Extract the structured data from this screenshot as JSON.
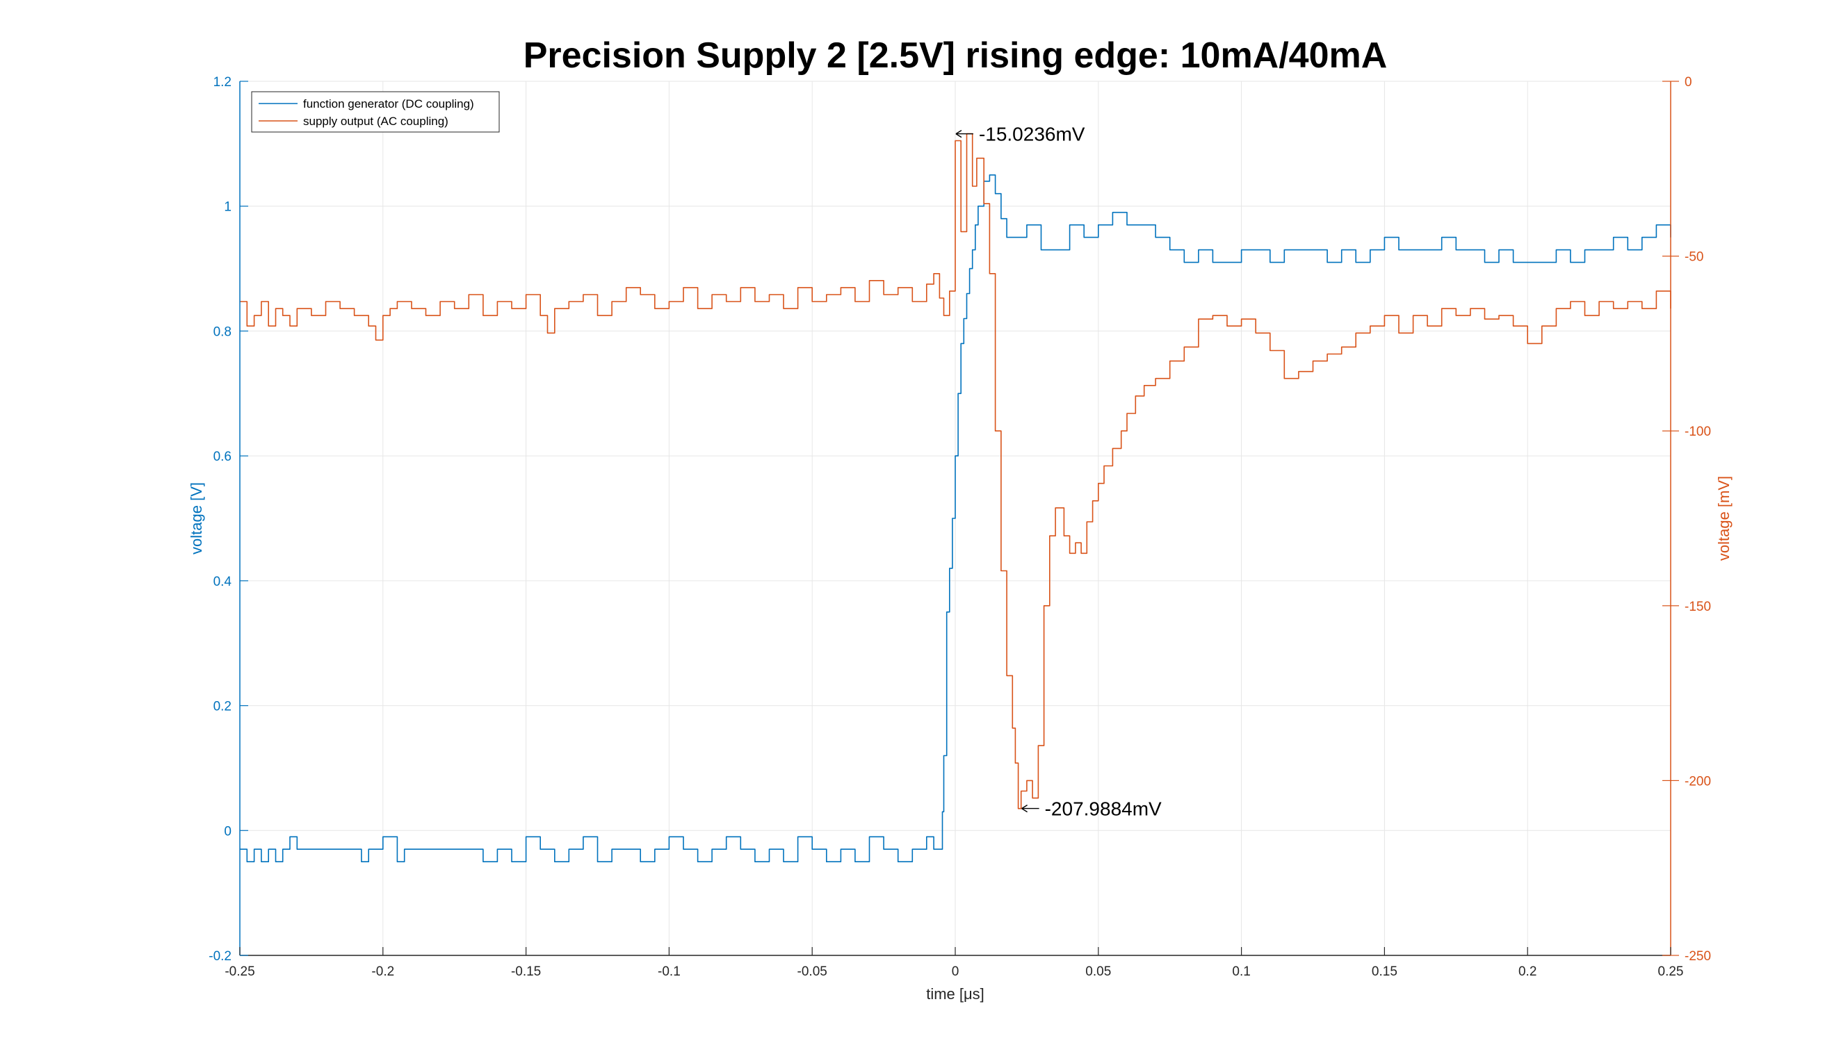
{
  "chart_data": {
    "type": "line",
    "title": "Precision Supply 2 [2.5V] rising edge: 10mA/40mA",
    "xlabel": "time [μs]",
    "ylabel_left": "voltage [V]",
    "ylabel_right": "voltage [mV]",
    "xlim": [
      -0.25,
      0.25
    ],
    "ylim_left": [
      -0.2,
      1.2
    ],
    "ylim_right": [
      -250,
      0
    ],
    "x_ticks": [
      "-0.25",
      "-0.2",
      "-0.15",
      "-0.1",
      "-0.05",
      "0",
      "0.05",
      "0.1",
      "0.15",
      "0.2",
      "0.25"
    ],
    "y_left_ticks": [
      "-0.2",
      "0",
      "0.2",
      "0.4",
      "0.6",
      "0.8",
      "1",
      "1.2"
    ],
    "y_right_ticks": [
      "-250",
      "-200",
      "-150",
      "-100",
      "-50",
      "0"
    ],
    "grid": true,
    "legend_position": "top-left",
    "colors": {
      "left_axis": "#0072BD",
      "right_axis": "#D95319"
    },
    "series": [
      {
        "name": "function generator (DC coupling)",
        "axis": "left",
        "color": "#0072BD",
        "x": [
          -0.25,
          -0.2475,
          -0.245,
          -0.2425,
          -0.24,
          -0.2375,
          -0.235,
          -0.2325,
          -0.23,
          -0.22,
          -0.21,
          -0.2075,
          -0.205,
          -0.2,
          -0.195,
          -0.1925,
          -0.19,
          -0.18,
          -0.17,
          -0.165,
          -0.16,
          -0.155,
          -0.15,
          -0.145,
          -0.14,
          -0.135,
          -0.13,
          -0.125,
          -0.12,
          -0.115,
          -0.11,
          -0.105,
          -0.1,
          -0.095,
          -0.09,
          -0.085,
          -0.08,
          -0.075,
          -0.07,
          -0.065,
          -0.06,
          -0.055,
          -0.05,
          -0.045,
          -0.04,
          -0.035,
          -0.03,
          -0.025,
          -0.02,
          -0.015,
          -0.01,
          -0.0075,
          -0.005,
          -0.0045,
          -0.004,
          -0.003,
          -0.002,
          -0.001,
          0,
          0.001,
          0.002,
          0.003,
          0.004,
          0.005,
          0.006,
          0.007,
          0.008,
          0.01,
          0.012,
          0.014,
          0.016,
          0.018,
          0.02,
          0.025,
          0.03,
          0.035,
          0.04,
          0.045,
          0.05,
          0.055,
          0.06,
          0.065,
          0.07,
          0.075,
          0.08,
          0.085,
          0.09,
          0.095,
          0.1,
          0.105,
          0.11,
          0.115,
          0.12,
          0.125,
          0.13,
          0.135,
          0.14,
          0.145,
          0.15,
          0.155,
          0.16,
          0.165,
          0.17,
          0.175,
          0.18,
          0.185,
          0.19,
          0.195,
          0.2,
          0.205,
          0.21,
          0.215,
          0.22,
          0.225,
          0.23,
          0.235,
          0.24,
          0.245,
          0.25
        ],
        "y": [
          -0.03,
          -0.05,
          -0.03,
          -0.05,
          -0.03,
          -0.05,
          -0.03,
          -0.01,
          -0.03,
          -0.03,
          -0.03,
          -0.05,
          -0.03,
          -0.01,
          -0.05,
          -0.03,
          -0.03,
          -0.03,
          -0.03,
          -0.05,
          -0.03,
          -0.05,
          -0.01,
          -0.03,
          -0.05,
          -0.03,
          -0.01,
          -0.05,
          -0.03,
          -0.03,
          -0.05,
          -0.03,
          -0.01,
          -0.03,
          -0.05,
          -0.03,
          -0.01,
          -0.03,
          -0.05,
          -0.03,
          -0.05,
          -0.01,
          -0.03,
          -0.05,
          -0.03,
          -0.05,
          -0.01,
          -0.03,
          -0.05,
          -0.03,
          -0.01,
          -0.03,
          -0.03,
          0.03,
          0.12,
          0.35,
          0.42,
          0.5,
          0.6,
          0.7,
          0.78,
          0.82,
          0.86,
          0.9,
          0.93,
          0.97,
          1.0,
          1.04,
          1.05,
          1.02,
          0.98,
          0.95,
          0.95,
          0.97,
          0.93,
          0.93,
          0.97,
          0.95,
          0.97,
          0.99,
          0.97,
          0.97,
          0.95,
          0.93,
          0.91,
          0.93,
          0.91,
          0.91,
          0.93,
          0.93,
          0.91,
          0.93,
          0.93,
          0.93,
          0.91,
          0.93,
          0.91,
          0.93,
          0.95,
          0.93,
          0.93,
          0.93,
          0.95,
          0.93,
          0.93,
          0.91,
          0.93,
          0.91,
          0.91,
          0.91,
          0.93,
          0.91,
          0.93,
          0.93,
          0.95,
          0.93,
          0.95,
          0.97,
          0.95
        ]
      },
      {
        "name": "supply output (AC coupling)",
        "axis": "right",
        "color": "#D95319",
        "x": [
          -0.25,
          -0.2475,
          -0.245,
          -0.2425,
          -0.24,
          -0.2375,
          -0.235,
          -0.2325,
          -0.23,
          -0.225,
          -0.22,
          -0.215,
          -0.21,
          -0.205,
          -0.2025,
          -0.2,
          -0.1975,
          -0.195,
          -0.19,
          -0.185,
          -0.18,
          -0.175,
          -0.17,
          -0.165,
          -0.16,
          -0.155,
          -0.15,
          -0.145,
          -0.1425,
          -0.14,
          -0.135,
          -0.13,
          -0.125,
          -0.12,
          -0.115,
          -0.11,
          -0.105,
          -0.1,
          -0.095,
          -0.09,
          -0.085,
          -0.08,
          -0.075,
          -0.07,
          -0.065,
          -0.06,
          -0.055,
          -0.05,
          -0.045,
          -0.04,
          -0.035,
          -0.03,
          -0.025,
          -0.02,
          -0.015,
          -0.01,
          -0.0075,
          -0.0055,
          -0.004,
          -0.002,
          0,
          0.002,
          0.004,
          0.006,
          0.0075,
          0.01,
          0.012,
          0.014,
          0.016,
          0.018,
          0.02,
          0.021,
          0.022,
          0.023,
          0.025,
          0.027,
          0.029,
          0.031,
          0.033,
          0.035,
          0.038,
          0.04,
          0.042,
          0.044,
          0.046,
          0.048,
          0.05,
          0.052,
          0.055,
          0.058,
          0.06,
          0.063,
          0.066,
          0.07,
          0.075,
          0.08,
          0.085,
          0.09,
          0.095,
          0.1,
          0.105,
          0.11,
          0.115,
          0.12,
          0.125,
          0.13,
          0.135,
          0.14,
          0.145,
          0.15,
          0.155,
          0.16,
          0.165,
          0.17,
          0.175,
          0.18,
          0.185,
          0.19,
          0.195,
          0.2,
          0.205,
          0.21,
          0.215,
          0.22,
          0.225,
          0.23,
          0.235,
          0.24,
          0.245,
          0.25
        ],
        "y": [
          -63,
          -70,
          -67,
          -63,
          -70,
          -65,
          -67,
          -70,
          -65,
          -67,
          -63,
          -65,
          -67,
          -70,
          -74,
          -67,
          -65,
          -63,
          -65,
          -67,
          -63,
          -65,
          -61,
          -67,
          -63,
          -65,
          -61,
          -67,
          -72,
          -65,
          -63,
          -61,
          -67,
          -63,
          -59,
          -61,
          -65,
          -63,
          -59,
          -65,
          -61,
          -63,
          -59,
          -63,
          -61,
          -65,
          -59,
          -63,
          -61,
          -59,
          -63,
          -57,
          -61,
          -59,
          -63,
          -58,
          -55,
          -62,
          -67,
          -60,
          -17,
          -43,
          -15,
          -30,
          -22,
          -35,
          -55,
          -100,
          -140,
          -170,
          -185,
          -195,
          -208,
          -203,
          -200,
          -205,
          -190,
          -150,
          -130,
          -122,
          -130,
          -135,
          -132,
          -135,
          -126,
          -120,
          -115,
          -110,
          -105,
          -100,
          -95,
          -90,
          -87,
          -85,
          -80,
          -76,
          -68,
          -67,
          -70,
          -68,
          -72,
          -77,
          -85,
          -83,
          -80,
          -78,
          -76,
          -72,
          -70,
          -67,
          -72,
          -67,
          -70,
          -65,
          -67,
          -65,
          -68,
          -67,
          -70,
          -75,
          -70,
          -65,
          -63,
          -67,
          -63,
          -65,
          -63,
          -65,
          -60,
          -65
        ]
      }
    ],
    "annotations": [
      {
        "text": "-15.0236mV",
        "x": -0.0005,
        "y": -15.0236,
        "axis": "right"
      },
      {
        "text": "-207.9884mV",
        "x": 0.0225,
        "y": -207.9884,
        "axis": "right"
      }
    ]
  }
}
